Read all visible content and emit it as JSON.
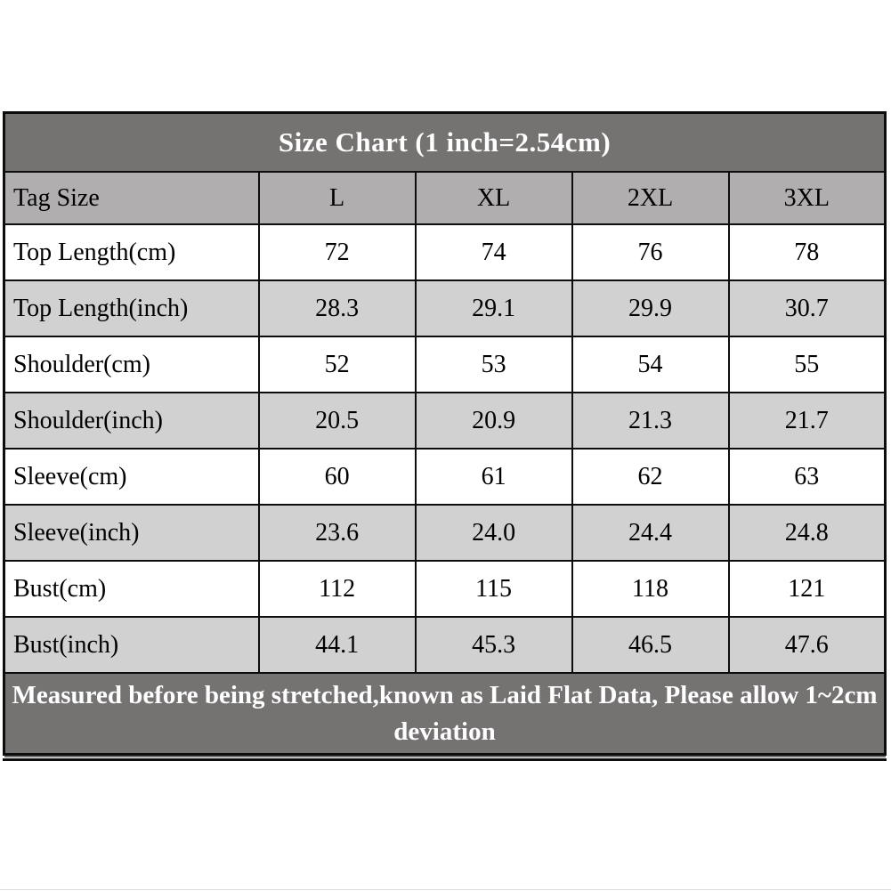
{
  "chart_data": {
    "type": "table",
    "title": "Size Chart (1 inch=2.54cm)",
    "columns": [
      "Tag Size",
      "L",
      "XL",
      "2XL",
      "3XL"
    ],
    "rows": [
      {
        "label": "Top Length(cm)",
        "values": [
          "72",
          "74",
          "76",
          "78"
        ]
      },
      {
        "label": "Top Length(inch)",
        "values": [
          "28.3",
          "29.1",
          "29.9",
          "30.7"
        ]
      },
      {
        "label": "Shoulder(cm)",
        "values": [
          "52",
          "53",
          "54",
          "55"
        ]
      },
      {
        "label": "Shoulder(inch)",
        "values": [
          "20.5",
          "20.9",
          "21.3",
          "21.7"
        ]
      },
      {
        "label": "Sleeve(cm)",
        "values": [
          "60",
          "61",
          "62",
          "63"
        ]
      },
      {
        "label": "Sleeve(inch)",
        "values": [
          "23.6",
          "24.0",
          "24.4",
          "24.8"
        ]
      },
      {
        "label": "Bust(cm)",
        "values": [
          "112",
          "115",
          "118",
          "121"
        ]
      },
      {
        "label": "Bust(inch)",
        "values": [
          "44.1",
          "45.3",
          "46.5",
          "47.6"
        ]
      }
    ],
    "note": "Measured before being stretched,known as Laid Flat Data, Please allow 1~2cm deviation",
    "layout_hints": {
      "striping": "cm rows white, inch rows gray",
      "grid": "on"
    }
  },
  "colors": {
    "title_bar_bg": "#757272",
    "header_row_bg": "#b0aeae",
    "striped_row_bg": "#d1d1d1",
    "plain_row_bg": "#ffffff",
    "grid_border": "#0d0d0d",
    "title_text": "#ffffff",
    "cell_text": "#000000"
  }
}
